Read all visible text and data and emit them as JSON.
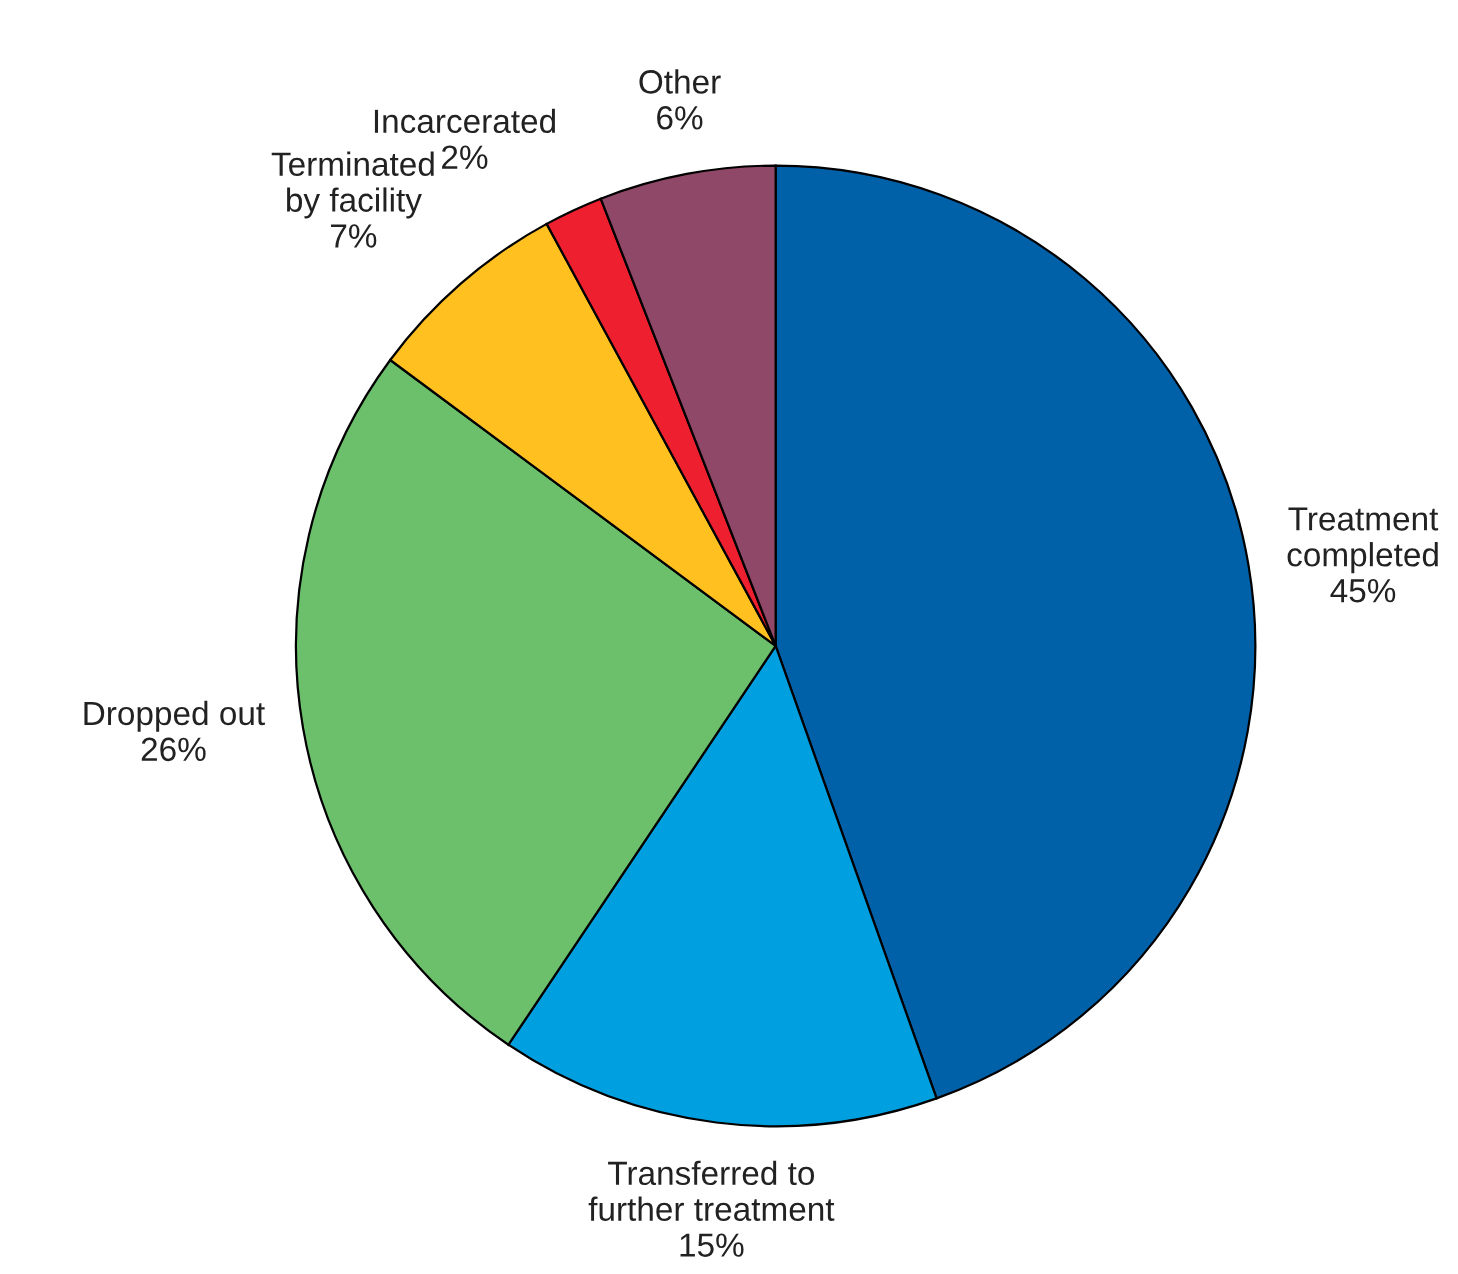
{
  "chart_data": {
    "type": "pie",
    "categories": [
      "Treatment\ncompleted",
      "Transferred to\nfurther treatment",
      "Dropped out",
      "Terminated\nby facility",
      "Incarcerated",
      "Other"
    ],
    "values": [
      45,
      15,
      26,
      7,
      2,
      6
    ],
    "value_labels": [
      "45%",
      "15%",
      "26%",
      "7%",
      "2%",
      "6%"
    ],
    "colors": [
      "#0060a8",
      "#00a0e0",
      "#6cc06c",
      "#ffc020",
      "#ee2030",
      "#904868"
    ],
    "legend": false
  }
}
